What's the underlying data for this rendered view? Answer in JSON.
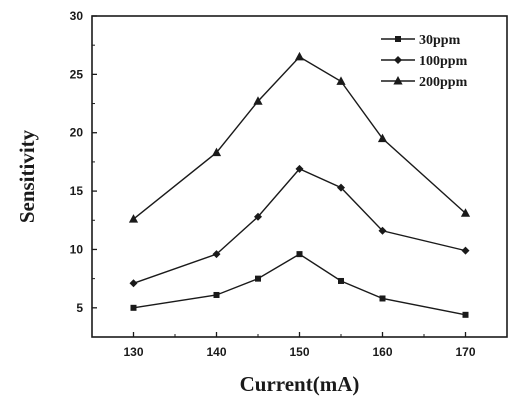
{
  "chart_data": {
    "type": "line",
    "title": "",
    "xlabel": "Current(mA)",
    "ylabel": "Sensitivity",
    "x": [
      130,
      140,
      145,
      150,
      155,
      160,
      170
    ],
    "xlim": [
      125,
      175
    ],
    "ylim": [
      2.5,
      30
    ],
    "xticks": [
      "130",
      "140",
      "150",
      "160",
      "170"
    ],
    "yticks": [
      "5",
      "10",
      "15",
      "20",
      "25",
      "30"
    ],
    "grid": false,
    "legend_position": "top-right",
    "series": [
      {
        "name": "30ppm",
        "marker": "square",
        "values": [
          5.0,
          6.1,
          7.5,
          9.6,
          7.3,
          5.8,
          4.4
        ]
      },
      {
        "name": "100ppm",
        "marker": "diamond",
        "values": [
          7.1,
          9.6,
          12.8,
          16.9,
          15.3,
          11.6,
          9.9
        ]
      },
      {
        "name": "200ppm",
        "marker": "triangle",
        "values": [
          12.6,
          18.3,
          22.7,
          26.5,
          24.4,
          19.5,
          13.1
        ]
      }
    ],
    "colors": {
      "line": "#1a1a1a",
      "axis": "#1a1a1a"
    }
  }
}
